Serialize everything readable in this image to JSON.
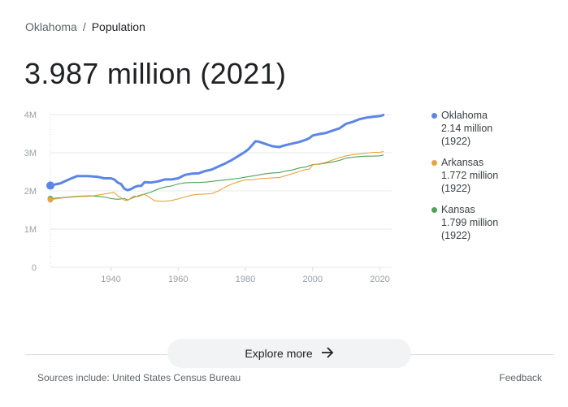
{
  "breadcrumb": {
    "parent": "Oklahoma",
    "separator": "/",
    "current": "Population"
  },
  "headline": "3.987 million (2021)",
  "chart_data": {
    "type": "line",
    "title": "",
    "xlabel": "",
    "ylabel": "",
    "x_range": [
      1922,
      2021
    ],
    "ylim": [
      0,
      4000000
    ],
    "y_ticks": [
      {
        "value": 0,
        "label": "0"
      },
      {
        "value": 1000000,
        "label": "1M"
      },
      {
        "value": 2000000,
        "label": "2M"
      },
      {
        "value": 3000000,
        "label": "3M"
      },
      {
        "value": 4000000,
        "label": "4M"
      }
    ],
    "x_ticks": [
      {
        "value": 1940,
        "label": "1940"
      },
      {
        "value": 1960,
        "label": "1960"
      },
      {
        "value": 1980,
        "label": "1980"
      },
      {
        "value": 2000,
        "label": "2000"
      },
      {
        "value": 2020,
        "label": "2020"
      }
    ],
    "grid": true,
    "legend_position": "right",
    "series": [
      {
        "name": "Oklahoma",
        "color": "#5b86e5",
        "points": [
          [
            1922,
            2.14
          ],
          [
            1925,
            2.2
          ],
          [
            1928,
            2.32
          ],
          [
            1930,
            2.39
          ],
          [
            1933,
            2.39
          ],
          [
            1936,
            2.37
          ],
          [
            1938,
            2.33
          ],
          [
            1940,
            2.33
          ],
          [
            1941,
            2.3
          ],
          [
            1942,
            2.22
          ],
          [
            1943,
            2.18
          ],
          [
            1944,
            2.06
          ],
          [
            1945,
            2.02
          ],
          [
            1946,
            2.05
          ],
          [
            1947,
            2.1
          ],
          [
            1948,
            2.13
          ],
          [
            1949,
            2.13
          ],
          [
            1950,
            2.23
          ],
          [
            1952,
            2.22
          ],
          [
            1954,
            2.25
          ],
          [
            1956,
            2.3
          ],
          [
            1958,
            2.3
          ],
          [
            1960,
            2.33
          ],
          [
            1962,
            2.42
          ],
          [
            1964,
            2.45
          ],
          [
            1966,
            2.46
          ],
          [
            1968,
            2.52
          ],
          [
            1970,
            2.56
          ],
          [
            1972,
            2.64
          ],
          [
            1974,
            2.72
          ],
          [
            1976,
            2.81
          ],
          [
            1978,
            2.92
          ],
          [
            1980,
            3.03
          ],
          [
            1981,
            3.1
          ],
          [
            1982,
            3.2
          ],
          [
            1983,
            3.3
          ],
          [
            1984,
            3.29
          ],
          [
            1985,
            3.26
          ],
          [
            1986,
            3.23
          ],
          [
            1988,
            3.17
          ],
          [
            1990,
            3.15
          ],
          [
            1992,
            3.2
          ],
          [
            1994,
            3.24
          ],
          [
            1996,
            3.28
          ],
          [
            1998,
            3.34
          ],
          [
            1999,
            3.38
          ],
          [
            2000,
            3.45
          ],
          [
            2002,
            3.49
          ],
          [
            2004,
            3.52
          ],
          [
            2006,
            3.58
          ],
          [
            2008,
            3.64
          ],
          [
            2010,
            3.76
          ],
          [
            2012,
            3.81
          ],
          [
            2014,
            3.88
          ],
          [
            2016,
            3.92
          ],
          [
            2018,
            3.94
          ],
          [
            2020,
            3.96
          ],
          [
            2021,
            3.987
          ]
        ]
      },
      {
        "name": "Arkansas",
        "color": "#e8a33c",
        "points": [
          [
            1922,
            1.772
          ],
          [
            1926,
            1.82
          ],
          [
            1930,
            1.85
          ],
          [
            1934,
            1.86
          ],
          [
            1938,
            1.92
          ],
          [
            1940,
            1.95
          ],
          [
            1941,
            1.96
          ],
          [
            1942,
            1.87
          ],
          [
            1943,
            1.82
          ],
          [
            1944,
            1.76
          ],
          [
            1945,
            1.75
          ],
          [
            1946,
            1.82
          ],
          [
            1947,
            1.87
          ],
          [
            1948,
            1.85
          ],
          [
            1950,
            1.91
          ],
          [
            1951,
            1.86
          ],
          [
            1953,
            1.74
          ],
          [
            1955,
            1.73
          ],
          [
            1956,
            1.73
          ],
          [
            1958,
            1.75
          ],
          [
            1960,
            1.79
          ],
          [
            1962,
            1.84
          ],
          [
            1964,
            1.89
          ],
          [
            1966,
            1.91
          ],
          [
            1968,
            1.92
          ],
          [
            1970,
            1.93
          ],
          [
            1972,
            2.0
          ],
          [
            1974,
            2.1
          ],
          [
            1976,
            2.18
          ],
          [
            1978,
            2.24
          ],
          [
            1980,
            2.29
          ],
          [
            1982,
            2.29
          ],
          [
            1984,
            2.32
          ],
          [
            1986,
            2.33
          ],
          [
            1988,
            2.34
          ],
          [
            1990,
            2.35
          ],
          [
            1992,
            2.4
          ],
          [
            1994,
            2.45
          ],
          [
            1996,
            2.51
          ],
          [
            1998,
            2.56
          ],
          [
            1999,
            2.57
          ],
          [
            2000,
            2.68
          ],
          [
            2002,
            2.71
          ],
          [
            2004,
            2.75
          ],
          [
            2006,
            2.81
          ],
          [
            2008,
            2.87
          ],
          [
            2010,
            2.92
          ],
          [
            2012,
            2.95
          ],
          [
            2014,
            2.97
          ],
          [
            2016,
            2.99
          ],
          [
            2018,
            3.01
          ],
          [
            2020,
            3.01
          ],
          [
            2021,
            3.03
          ]
        ]
      },
      {
        "name": "Kansas",
        "color": "#4da35a",
        "points": [
          [
            1922,
            1.799
          ],
          [
            1926,
            1.83
          ],
          [
            1930,
            1.86
          ],
          [
            1934,
            1.87
          ],
          [
            1938,
            1.84
          ],
          [
            1940,
            1.8
          ],
          [
            1942,
            1.78
          ],
          [
            1944,
            1.8
          ],
          [
            1945,
            1.76
          ],
          [
            1946,
            1.8
          ],
          [
            1948,
            1.87
          ],
          [
            1950,
            1.92
          ],
          [
            1952,
            1.97
          ],
          [
            1954,
            2.05
          ],
          [
            1956,
            2.1
          ],
          [
            1958,
            2.13
          ],
          [
            1960,
            2.18
          ],
          [
            1962,
            2.21
          ],
          [
            1964,
            2.22
          ],
          [
            1966,
            2.22
          ],
          [
            1968,
            2.23
          ],
          [
            1970,
            2.25
          ],
          [
            1972,
            2.27
          ],
          [
            1974,
            2.29
          ],
          [
            1976,
            2.31
          ],
          [
            1978,
            2.33
          ],
          [
            1980,
            2.36
          ],
          [
            1982,
            2.39
          ],
          [
            1984,
            2.42
          ],
          [
            1986,
            2.45
          ],
          [
            1988,
            2.47
          ],
          [
            1990,
            2.48
          ],
          [
            1992,
            2.52
          ],
          [
            1994,
            2.55
          ],
          [
            1996,
            2.6
          ],
          [
            1998,
            2.63
          ],
          [
            2000,
            2.69
          ],
          [
            2002,
            2.7
          ],
          [
            2004,
            2.73
          ],
          [
            2006,
            2.76
          ],
          [
            2008,
            2.8
          ],
          [
            2010,
            2.86
          ],
          [
            2012,
            2.88
          ],
          [
            2014,
            2.9
          ],
          [
            2016,
            2.91
          ],
          [
            2018,
            2.91
          ],
          [
            2020,
            2.92
          ],
          [
            2021,
            2.94
          ]
        ]
      }
    ]
  },
  "legend": [
    {
      "name": "Oklahoma",
      "value": "2.14 million",
      "year": "(1922)",
      "color": "#5b86e5"
    },
    {
      "name": "Arkansas",
      "value": "1.772 million",
      "year": "(1922)",
      "color": "#e8a33c"
    },
    {
      "name": "Kansas",
      "value": "1.799 million",
      "year": "(1922)",
      "color": "#4da35a"
    }
  ],
  "explore": {
    "label": "Explore more",
    "icon": "arrow-right-icon"
  },
  "footer": {
    "sources": "Sources include: United States Census Bureau",
    "feedback": "Feedback"
  }
}
